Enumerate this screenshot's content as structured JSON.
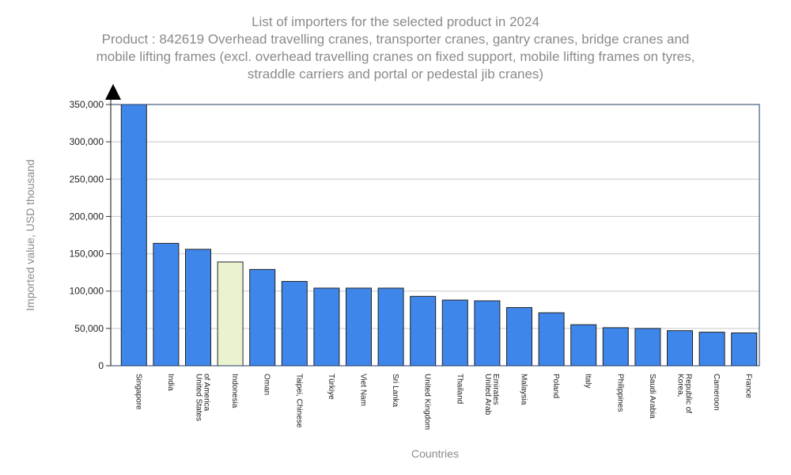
{
  "chart_data": {
    "type": "bar",
    "title": "List of importers for the selected product in 2024",
    "subtitle": [
      "Product : 842619 Overhead travelling cranes, transporter cranes, gantry cranes, bridge cranes and",
      "mobile lifting frames (excl. overhead travelling cranes on fixed support, mobile lifting frames on tyres,",
      "straddle carriers and portal or pedestal jib cranes)"
    ],
    "xlabel": "Countries",
    "ylabel": "Imported value, USD thousand",
    "ylim": [
      0,
      350000
    ],
    "yticks": [
      0,
      50000,
      100000,
      150000,
      200000,
      250000,
      300000,
      350000
    ],
    "ytick_labels": [
      "0",
      "50,000",
      "100,000",
      "150,000",
      "200,000",
      "250,000",
      "300,000",
      "350,000"
    ],
    "grid": true,
    "categories": [
      [
        "Singapore"
      ],
      [
        "India"
      ],
      [
        "United States",
        "of America"
      ],
      [
        "Indonesia"
      ],
      [
        "Oman"
      ],
      [
        "Taipei, Chinese"
      ],
      [
        "Türkiye"
      ],
      [
        "Viet Nam"
      ],
      [
        "Sri Lanka"
      ],
      [
        "United Kingdom"
      ],
      [
        "Thailand"
      ],
      [
        "United Arab",
        "Emirates"
      ],
      [
        "Malaysia"
      ],
      [
        "Poland"
      ],
      [
        "Italy"
      ],
      [
        "Philippines"
      ],
      [
        "Saudi Arabia"
      ],
      [
        "Korea,",
        "Republic of"
      ],
      [
        "Cameroon"
      ],
      [
        "France"
      ]
    ],
    "values": [
      350000,
      164000,
      156000,
      139000,
      129000,
      113000,
      104000,
      104000,
      104000,
      93000,
      88000,
      87000,
      78000,
      71000,
      55000,
      51000,
      50000,
      47000,
      45000,
      44000
    ],
    "highlight_index": 3,
    "colors": {
      "bar": "#3f86ea",
      "highlight": "#eaf3d0",
      "bar_stroke": "#222222",
      "grid": "#c8c8c8",
      "frame": "#1f3b63",
      "axis": "#333333"
    }
  }
}
